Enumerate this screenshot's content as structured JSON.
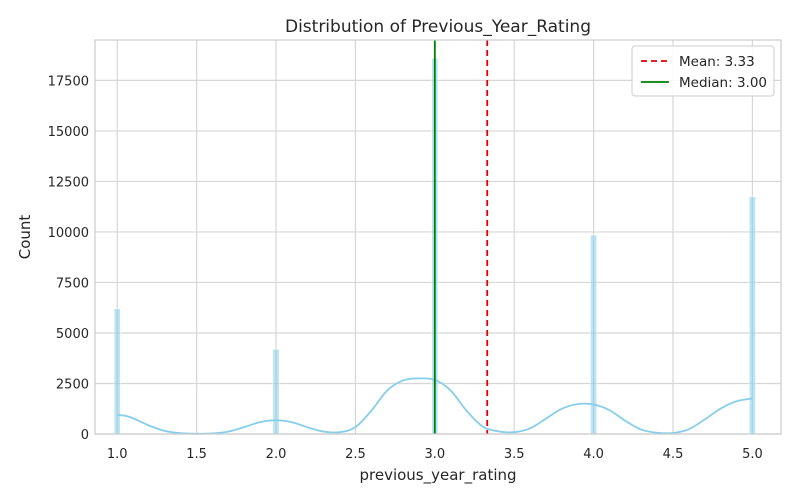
{
  "chart_data": {
    "type": "histogram",
    "title": "Distribution of Previous_Year_Rating",
    "xlabel": "previous_year_rating",
    "ylabel": "Count",
    "xlim": [
      0.86,
      5.18
    ],
    "ylim": [
      0,
      19500
    ],
    "xticks": [
      1.0,
      1.5,
      2.0,
      2.5,
      3.0,
      3.5,
      4.0,
      4.5,
      5.0
    ],
    "xtick_labels": [
      "1.0",
      "1.5",
      "2.0",
      "2.5",
      "3.0",
      "3.5",
      "4.0",
      "4.5",
      "5.0"
    ],
    "yticks": [
      0,
      2500,
      5000,
      7500,
      10000,
      12500,
      15000,
      17500
    ],
    "ytick_labels": [
      "0",
      "2500",
      "5000",
      "7500",
      "10000",
      "12500",
      "15000",
      "17500"
    ],
    "bars": [
      {
        "x": 1.0,
        "count": 6200
      },
      {
        "x": 2.0,
        "count": 4200
      },
      {
        "x": 3.0,
        "count": 18600
      },
      {
        "x": 4.0,
        "count": 9850
      },
      {
        "x": 5.0,
        "count": 11750
      }
    ],
    "bar_width": 0.04,
    "kde": {
      "x": [
        1.0,
        1.05,
        1.1,
        1.2,
        1.3,
        1.4,
        1.5,
        1.6,
        1.7,
        1.8,
        1.9,
        2.0,
        2.1,
        2.2,
        2.3,
        2.4,
        2.5,
        2.6,
        2.7,
        2.8,
        2.9,
        3.0,
        3.1,
        3.2,
        3.3,
        3.4,
        3.5,
        3.6,
        3.7,
        3.8,
        3.9,
        4.0,
        4.1,
        4.2,
        4.3,
        4.4,
        4.5,
        4.6,
        4.7,
        4.8,
        4.9,
        5.0
      ],
      "y": [
        950,
        900,
        780,
        420,
        150,
        40,
        10,
        30,
        120,
        340,
        590,
        680,
        580,
        330,
        120,
        90,
        340,
        1150,
        2150,
        2650,
        2750,
        2680,
        2150,
        1150,
        380,
        130,
        90,
        280,
        760,
        1250,
        1480,
        1460,
        1180,
        650,
        220,
        60,
        50,
        240,
        720,
        1260,
        1620,
        1760
      ]
    },
    "reference_lines": [
      {
        "label": "Mean: 3.33",
        "x": 3.33,
        "color": "#e00000",
        "style": "dashed"
      },
      {
        "label": "Median: 3.00",
        "x": 3.0,
        "color": "#008000",
        "style": "solid"
      }
    ],
    "legend_position": "top-right",
    "grid": true,
    "colors": {
      "bar": "#87ceeb",
      "kde": "#87ceeb",
      "grid": "#d6d6d6",
      "spine": "#cccccc"
    }
  }
}
